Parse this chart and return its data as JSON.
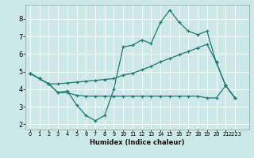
{
  "xlabel": "Humidex (Indice chaleur)",
  "bg_color": "#cce8e8",
  "line_color": "#1e7a6e",
  "grid_color": "#ffffff",
  "xlim": [
    -0.5,
    23.5
  ],
  "ylim": [
    1.7,
    8.8
  ],
  "yticks": [
    2,
    3,
    4,
    5,
    6,
    7,
    8
  ],
  "xtick_labels": [
    "0",
    "1",
    "2",
    "3",
    "4",
    "5",
    "6",
    "7",
    "8",
    "9",
    "10",
    "11",
    "12",
    "13",
    "14",
    "15",
    "16",
    "17",
    "18",
    "19",
    "20",
    "21",
    "2223"
  ],
  "line1_x": [
    0,
    1,
    2,
    3,
    4,
    5,
    6,
    7,
    8,
    9,
    10,
    11,
    12,
    13,
    14,
    15,
    16,
    17,
    18,
    19,
    20,
    21,
    22
  ],
  "line1_y": [
    4.9,
    4.6,
    4.3,
    3.8,
    3.9,
    3.1,
    2.5,
    2.2,
    2.5,
    4.0,
    6.4,
    6.5,
    6.8,
    6.6,
    7.8,
    8.5,
    7.8,
    7.3,
    7.1,
    7.3,
    5.5,
    4.2,
    3.5
  ],
  "line2_x": [
    0,
    1,
    2,
    3,
    4,
    5,
    6,
    7,
    8,
    9,
    10,
    11,
    12,
    13,
    14,
    15,
    16,
    17,
    18,
    19,
    20,
    21,
    22
  ],
  "line2_y": [
    4.9,
    4.6,
    4.3,
    4.3,
    4.35,
    4.4,
    4.45,
    4.5,
    4.55,
    4.6,
    4.8,
    4.9,
    5.1,
    5.3,
    5.55,
    5.75,
    5.95,
    6.15,
    6.35,
    6.55,
    5.55,
    4.2,
    3.5
  ],
  "line3_x": [
    0,
    1,
    2,
    3,
    4,
    5,
    6,
    7,
    8,
    9,
    10,
    11,
    12,
    13,
    14,
    15,
    16,
    17,
    18,
    19,
    20,
    21,
    22
  ],
  "line3_y": [
    4.9,
    4.6,
    4.3,
    3.8,
    3.8,
    3.65,
    3.6,
    3.6,
    3.6,
    3.6,
    3.6,
    3.6,
    3.6,
    3.6,
    3.6,
    3.6,
    3.6,
    3.6,
    3.6,
    3.5,
    3.5,
    4.2,
    3.5
  ]
}
